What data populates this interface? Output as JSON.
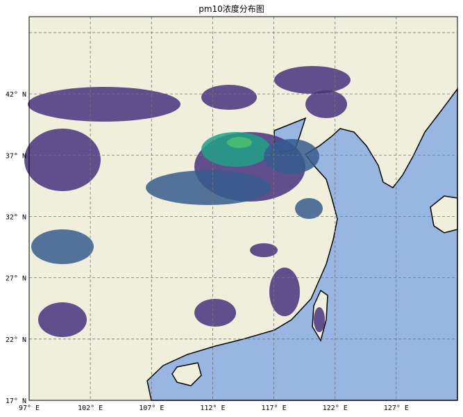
{
  "title": "pm10浓度分布图",
  "map": {
    "lon_ticks": [
      97,
      102,
      107,
      112,
      117,
      122,
      127
    ],
    "lat_ticks": [
      17,
      22,
      27,
      32,
      37,
      42,
      47
    ],
    "lon_labels": [
      "97° E",
      "102° E",
      "107° E",
      "112° E",
      "117° E",
      "122° E",
      "127° E"
    ],
    "lat_labels": [
      "17° N",
      "22° N",
      "27° N",
      "32° N",
      "37° N",
      "42° N"
    ],
    "extent": {
      "lon": [
        97,
        132
      ],
      "lat": [
        17,
        48.3
      ]
    },
    "gridlines": true,
    "colors": {
      "land": "#efefdc",
      "ocean": "#97b6e1",
      "low": "#46327e",
      "mid": "#365c8d",
      "high": "#1fa187",
      "peak": "#4ac16d",
      "grid": "#777777"
    }
  }
}
